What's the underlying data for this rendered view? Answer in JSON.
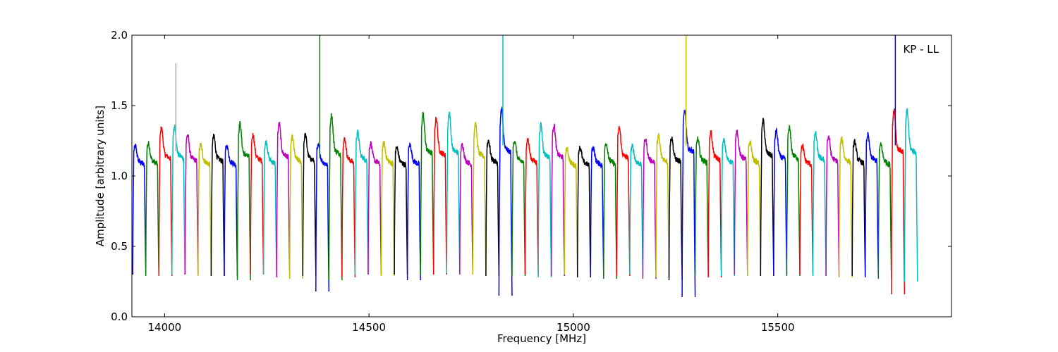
{
  "chart_data": {
    "type": "line",
    "title": "",
    "xlabel": "Frequency [MHz]",
    "ylabel": "Amplitude [arbitrary units]",
    "xlim": [
      13920,
      15925
    ],
    "ylim": [
      0.0,
      2.0
    ],
    "xticks": [
      14000,
      14500,
      15000,
      15500
    ],
    "yticks": [
      0.0,
      0.5,
      1.0,
      1.5,
      2.0
    ],
    "ytick_labels": [
      "0.0",
      "0.5",
      "1.0",
      "1.5",
      "2.0"
    ],
    "annotation": "KP - LL",
    "annotation_position": "top-right",
    "grid": false,
    "legend": "none",
    "color_cycle": [
      "#0000ff",
      "#008000",
      "#ff0000",
      "#00bfbf",
      "#bf00bf",
      "#bfbf00",
      "#000000"
    ],
    "channel_start_mhz": 13922,
    "channel_width_mhz": 32,
    "channels": [
      {
        "peak": 1.22,
        "min": 0.3
      },
      {
        "peak": 1.24,
        "min": 0.29
      },
      {
        "peak": 1.35,
        "min": 0.29
      },
      {
        "peak": 1.36,
        "min": 0.3,
        "spike": 1.8,
        "spike_color": "#aaaaaa"
      },
      {
        "peak": 1.3,
        "min": 0.3
      },
      {
        "peak": 1.23,
        "min": 0.29
      },
      {
        "peak": 1.29,
        "min": 0.29
      },
      {
        "peak": 1.22,
        "min": 0.29
      },
      {
        "peak": 1.38,
        "min": 0.26
      },
      {
        "peak": 1.3,
        "min": 0.3
      },
      {
        "peak": 1.25,
        "min": 0.3
      },
      {
        "peak": 1.38,
        "min": 0.28
      },
      {
        "peak": 1.28,
        "min": 0.27
      },
      {
        "peak": 1.3,
        "min": 0.29
      },
      {
        "peak": 1.22,
        "min": 0.18,
        "spike": 2.0,
        "spike_color": "#008000"
      },
      {
        "peak": 1.44,
        "min": 0.26
      },
      {
        "peak": 1.27,
        "min": 0.28
      },
      {
        "peak": 1.32,
        "min": 0.3
      },
      {
        "peak": 1.24,
        "min": 0.3
      },
      {
        "peak": 1.24,
        "min": 0.29
      },
      {
        "peak": 1.21,
        "min": 0.3
      },
      {
        "peak": 1.23,
        "min": 0.26
      },
      {
        "peak": 1.45,
        "min": 0.3
      },
      {
        "peak": 1.42,
        "min": 0.3
      },
      {
        "peak": 1.46,
        "min": 0.31
      },
      {
        "peak": 1.23,
        "min": 0.3
      },
      {
        "peak": 1.38,
        "min": 0.3
      },
      {
        "peak": 1.26,
        "min": 0.29
      },
      {
        "peak": 1.48,
        "min": 0.15,
        "spike": 2.0,
        "spike_color": "#00bfbf"
      },
      {
        "peak": 1.26,
        "min": 0.29
      },
      {
        "peak": 1.27,
        "min": 0.3
      },
      {
        "peak": 1.37,
        "min": 0.28
      },
      {
        "peak": 1.37,
        "min": 0.29
      },
      {
        "peak": 1.2,
        "min": 0.3
      },
      {
        "peak": 1.21,
        "min": 0.28
      },
      {
        "peak": 1.21,
        "min": 0.29
      },
      {
        "peak": 1.24,
        "min": 0.27
      },
      {
        "peak": 1.35,
        "min": 0.29
      },
      {
        "peak": 1.22,
        "min": 0.3
      },
      {
        "peak": 1.27,
        "min": 0.27
      },
      {
        "peak": 1.29,
        "min": 0.28
      },
      {
        "peak": 1.28,
        "min": 0.26
      },
      {
        "peak": 1.48,
        "min": 0.14,
        "spike": 2.0,
        "spike_color": "#bfbf00"
      },
      {
        "peak": 1.27,
        "min": 0.29
      },
      {
        "peak": 1.32,
        "min": 0.28
      },
      {
        "peak": 1.26,
        "min": 0.29
      },
      {
        "peak": 1.33,
        "min": 0.3
      },
      {
        "peak": 1.25,
        "min": 0.29
      },
      {
        "peak": 1.4,
        "min": 0.29
      },
      {
        "peak": 1.33,
        "min": 0.3
      },
      {
        "peak": 1.35,
        "min": 0.29
      },
      {
        "peak": 1.22,
        "min": 0.3
      },
      {
        "peak": 1.31,
        "min": 0.29
      },
      {
        "peak": 1.29,
        "min": 0.29
      },
      {
        "peak": 1.27,
        "min": 0.28
      },
      {
        "peak": 1.25,
        "min": 0.29
      },
      {
        "peak": 1.3,
        "min": 0.28
      },
      {
        "peak": 1.23,
        "min": 0.27
      },
      {
        "peak": 1.48,
        "min": 0.16,
        "spike": 2.0,
        "spike_color": "#0000ff"
      },
      {
        "peak": 1.47,
        "min": 0.25
      }
    ]
  }
}
